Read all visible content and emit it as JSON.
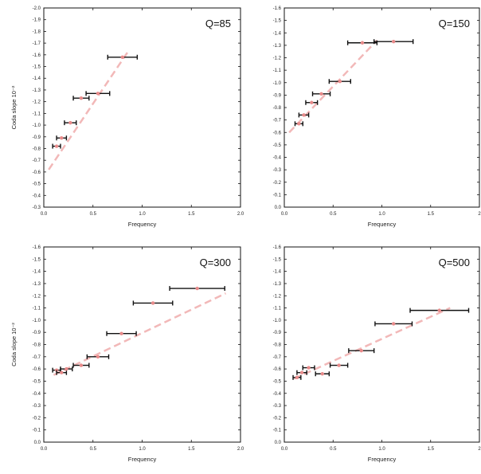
{
  "chart_data": [
    {
      "type": "scatter",
      "title": "Q=85",
      "xlabel": "Frequency",
      "ylabel": "Coda slope 10⁻²",
      "xlim": [
        0.0,
        2.0
      ],
      "ylim": [
        -2.0,
        -0.3
      ],
      "xticks": [
        "0.0",
        "0.5",
        "1.0",
        "1.5",
        "2.0"
      ],
      "yticks": [
        "-0.3",
        "-0.4",
        "-0.5",
        "-0.6",
        "-0.7",
        "-0.8",
        "-0.9",
        "-1.0",
        "-1.1",
        "-1.2",
        "-1.3",
        "-1.4",
        "-1.5",
        "-1.6",
        "-1.7",
        "-1.8",
        "-1.9",
        "-2.0"
      ],
      "points": [
        {
          "x": 0.13,
          "y": -0.82,
          "xerr": 0.04
        },
        {
          "x": 0.18,
          "y": -0.89,
          "xerr": 0.05
        },
        {
          "x": 0.27,
          "y": -1.02,
          "xerr": 0.06
        },
        {
          "x": 0.38,
          "y": -1.23,
          "xerr": 0.08
        },
        {
          "x": 0.55,
          "y": -1.27,
          "xerr": 0.12
        },
        {
          "x": 0.8,
          "y": -1.58,
          "xerr": 0.15
        }
      ],
      "model_line": {
        "x": [
          0.05,
          0.85
        ],
        "y": [
          -0.62,
          -1.62
        ]
      }
    },
    {
      "type": "scatter",
      "title": "Q=150",
      "xlabel": "Frequency",
      "ylabel": "",
      "xlim": [
        0.0,
        2.0
      ],
      "ylim": [
        -1.6,
        0.0
      ],
      "xticks": [
        "0.0",
        "0.5",
        "1.0",
        "1.5",
        "2"
      ],
      "yticks": [
        "0.0",
        "-0.1",
        "-0.2",
        "-0.3",
        "-0.4",
        "-0.5",
        "-0.6",
        "-0.7",
        "-0.8",
        "-0.9",
        "-1.0",
        "-1.1",
        "-1.2",
        "-1.3",
        "-1.4",
        "-1.5",
        "-1.6"
      ],
      "points": [
        {
          "x": 0.15,
          "y": -0.67,
          "xerr": 0.04
        },
        {
          "x": 0.2,
          "y": -0.74,
          "xerr": 0.05
        },
        {
          "x": 0.28,
          "y": -0.84,
          "xerr": 0.06
        },
        {
          "x": 0.38,
          "y": -0.91,
          "xerr": 0.09
        },
        {
          "x": 0.57,
          "y": -1.01,
          "xerr": 0.11
        },
        {
          "x": 0.8,
          "y": -1.32,
          "xerr": 0.15
        },
        {
          "x": 1.12,
          "y": -1.33,
          "xerr": 0.2
        }
      ],
      "model_line": {
        "x": [
          0.05,
          0.95
        ],
        "y": [
          -0.6,
          -1.34
        ]
      }
    },
    {
      "type": "scatter",
      "title": "Q=300",
      "xlabel": "Frequency",
      "ylabel": "Coda slope 10⁻²",
      "xlim": [
        0.0,
        2.0
      ],
      "ylim": [
        -1.6,
        0.0
      ],
      "xticks": [
        "0.0",
        "0.5",
        "1.0",
        "1.5",
        "2.0"
      ],
      "yticks": [
        "0.0",
        "-0.1",
        "-0.2",
        "-0.3",
        "-0.4",
        "-0.5",
        "-0.6",
        "-0.7",
        "-0.8",
        "-0.9",
        "-1.0",
        "-1.1",
        "-1.2",
        "-1.3",
        "-1.4",
        "-1.5",
        "-1.6"
      ],
      "points": [
        {
          "x": 0.13,
          "y": -0.59,
          "xerr": 0.04
        },
        {
          "x": 0.18,
          "y": -0.57,
          "xerr": 0.05
        },
        {
          "x": 0.23,
          "y": -0.6,
          "xerr": 0.06
        },
        {
          "x": 0.38,
          "y": -0.63,
          "xerr": 0.08
        },
        {
          "x": 0.55,
          "y": -0.7,
          "xerr": 0.11
        },
        {
          "x": 0.79,
          "y": -0.89,
          "xerr": 0.15
        },
        {
          "x": 1.11,
          "y": -1.14,
          "xerr": 0.2
        },
        {
          "x": 1.56,
          "y": -1.26,
          "xerr": 0.28
        }
      ],
      "model_line": {
        "x": [
          0.1,
          1.85
        ],
        "y": [
          -0.55,
          -1.22
        ]
      }
    },
    {
      "type": "scatter",
      "title": "Q=500",
      "xlabel": "Frequency",
      "ylabel": "",
      "xlim": [
        0.0,
        2.0
      ],
      "ylim": [
        -1.6,
        0.0
      ],
      "xticks": [
        "0.0",
        "0.5",
        "1.0",
        "1.5",
        "2"
      ],
      "yticks": [
        "0.0",
        "-0.1",
        "-0.2",
        "-0.3",
        "-0.4",
        "-0.5",
        "-0.6",
        "-0.7",
        "-0.8",
        "-0.9",
        "-1.0",
        "-1.1",
        "-1.2",
        "-1.3",
        "-1.4",
        "-1.5",
        "-1.6"
      ],
      "points": [
        {
          "x": 0.13,
          "y": -0.53,
          "xerr": 0.04
        },
        {
          "x": 0.18,
          "y": -0.57,
          "xerr": 0.05
        },
        {
          "x": 0.25,
          "y": -0.61,
          "xerr": 0.06
        },
        {
          "x": 0.39,
          "y": -0.56,
          "xerr": 0.07
        },
        {
          "x": 0.56,
          "y": -0.63,
          "xerr": 0.09
        },
        {
          "x": 0.79,
          "y": -0.75,
          "xerr": 0.13
        },
        {
          "x": 1.12,
          "y": -0.97,
          "xerr": 0.19
        },
        {
          "x": 1.59,
          "y": -1.08,
          "xerr": 0.3
        }
      ],
      "model_line": {
        "x": [
          0.1,
          1.7
        ],
        "y": [
          -0.52,
          -1.1
        ]
      }
    }
  ],
  "colors": {
    "point": "#e88a8a",
    "model_line": "#f2b8b8",
    "errorbar": "#111111",
    "shade": "#f1f1f1"
  }
}
